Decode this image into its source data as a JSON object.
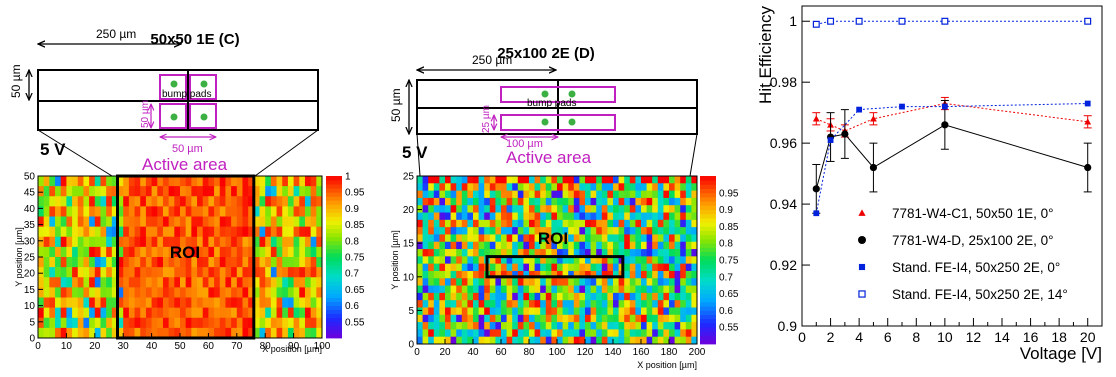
{
  "panels": [
    {
      "title": "50x50 1E (C)",
      "pitch_label": "250 µm",
      "height_label": "50 µm",
      "width_label": "50 µm",
      "side_label": "50 µm",
      "bump_label": "bump pads",
      "voltage_label": "5 V",
      "active_label": "Active area",
      "roi_label": "ROI"
    },
    {
      "title": "25x100 2E (D)",
      "pitch_label": "250 µm",
      "height_label": "50 µm",
      "width_label": "100 µm",
      "side_label": "25 µm",
      "bump_label": "bump pads",
      "voltage_label": "5 V",
      "active_label": "Active area",
      "roi_label": "ROI"
    }
  ],
  "colors": {
    "pixel_outline": "#c020c0",
    "bump": "#3cb043",
    "active": "#c020c0"
  },
  "chart_data": [
    {
      "type": "heatmap",
      "title": "",
      "xlabel": "X position [µm]",
      "ylabel": "Y position [µm]",
      "xlim": [
        0,
        100
      ],
      "ylim": [
        0,
        50
      ],
      "x_ticks": [
        "0",
        "10",
        "20",
        "30",
        "40",
        "50",
        "60",
        "70",
        "80",
        "90",
        "100"
      ],
      "y_ticks": [
        "0",
        "5",
        "10",
        "15",
        "20",
        "25",
        "30",
        "35",
        "40",
        "45",
        "50"
      ],
      "colorbar_range": [
        0.5,
        1.0
      ],
      "colorbar_ticks": [
        "0.55",
        "0.6",
        "0.65",
        "0.7",
        "0.75",
        "0.8",
        "0.85",
        "0.9",
        "0.95",
        "1"
      ],
      "roi": {
        "x": [
          28,
          76
        ],
        "y": [
          0,
          50
        ]
      }
    },
    {
      "type": "heatmap",
      "title": "",
      "xlabel": "X position [µm]",
      "ylabel": "Y position [µm]",
      "xlim": [
        0,
        200
      ],
      "ylim": [
        0,
        25
      ],
      "x_ticks": [
        "0",
        "20",
        "40",
        "60",
        "80",
        "100",
        "120",
        "140",
        "160",
        "180",
        "200"
      ],
      "y_ticks": [
        "0",
        "5",
        "10",
        "15",
        "20",
        "25"
      ],
      "colorbar_range": [
        0.5,
        1.0
      ],
      "colorbar_ticks": [
        "0.55",
        "0.6",
        "0.65",
        "0.7",
        "0.75",
        "0.8",
        "0.85",
        "0.9",
        "0.95"
      ],
      "roi": {
        "x": [
          50,
          147
        ],
        "y": [
          10,
          13
        ]
      }
    },
    {
      "type": "scatter",
      "title": "",
      "xlabel": "Voltage [V]",
      "ylabel": "Hit Efficiency",
      "xlim": [
        0,
        21
      ],
      "ylim": [
        0.9,
        1.005
      ],
      "x_ticks": [
        "0",
        "2",
        "4",
        "6",
        "8",
        "10",
        "12",
        "14",
        "16",
        "18",
        "20"
      ],
      "y_ticks": [
        "0.9",
        "0.92",
        "0.94",
        "0.96",
        "0.98",
        "1"
      ],
      "legend_position": "bottom-right",
      "series": [
        {
          "name": "7781-W4-C1, 50x50 1E, 0°",
          "marker": "triangle",
          "color": "#ee0000",
          "line": "dotted",
          "x": [
            1,
            2,
            3,
            5,
            10,
            20
          ],
          "y": [
            0.968,
            0.966,
            0.964,
            0.968,
            0.973,
            0.967
          ],
          "err": [
            0.002,
            0.002,
            0.002,
            0.002,
            0.002,
            0.002
          ]
        },
        {
          "name": "7781-W4-D, 25x100 2E, 0°",
          "marker": "circle",
          "color": "#000000",
          "line": "solid",
          "x": [
            1,
            2,
            3,
            5,
            10,
            20
          ],
          "y": [
            0.945,
            0.962,
            0.963,
            0.952,
            0.966,
            0.952
          ],
          "err": [
            0.008,
            0.008,
            0.008,
            0.008,
            0.008,
            0.008
          ]
        },
        {
          "name": "Stand. FE-I4, 50x250 2E, 0°",
          "marker": "square",
          "color": "#0022dd",
          "line": "dotted",
          "x": [
            1,
            2,
            4,
            7,
            10,
            20
          ],
          "y": [
            0.937,
            0.961,
            0.971,
            0.972,
            0.972,
            0.973
          ],
          "err": [
            0,
            0,
            0,
            0,
            0,
            0
          ]
        },
        {
          "name": "Stand. FE-I4, 50x250 2E, 14°",
          "marker": "open-square",
          "color": "#0022dd",
          "line": "dotted",
          "x": [
            1,
            2,
            4,
            7,
            10,
            20
          ],
          "y": [
            0.999,
            1.0,
            1.0,
            1.0,
            1.0,
            1.0
          ],
          "err": [
            0,
            0,
            0,
            0,
            0,
            0
          ]
        }
      ]
    }
  ]
}
